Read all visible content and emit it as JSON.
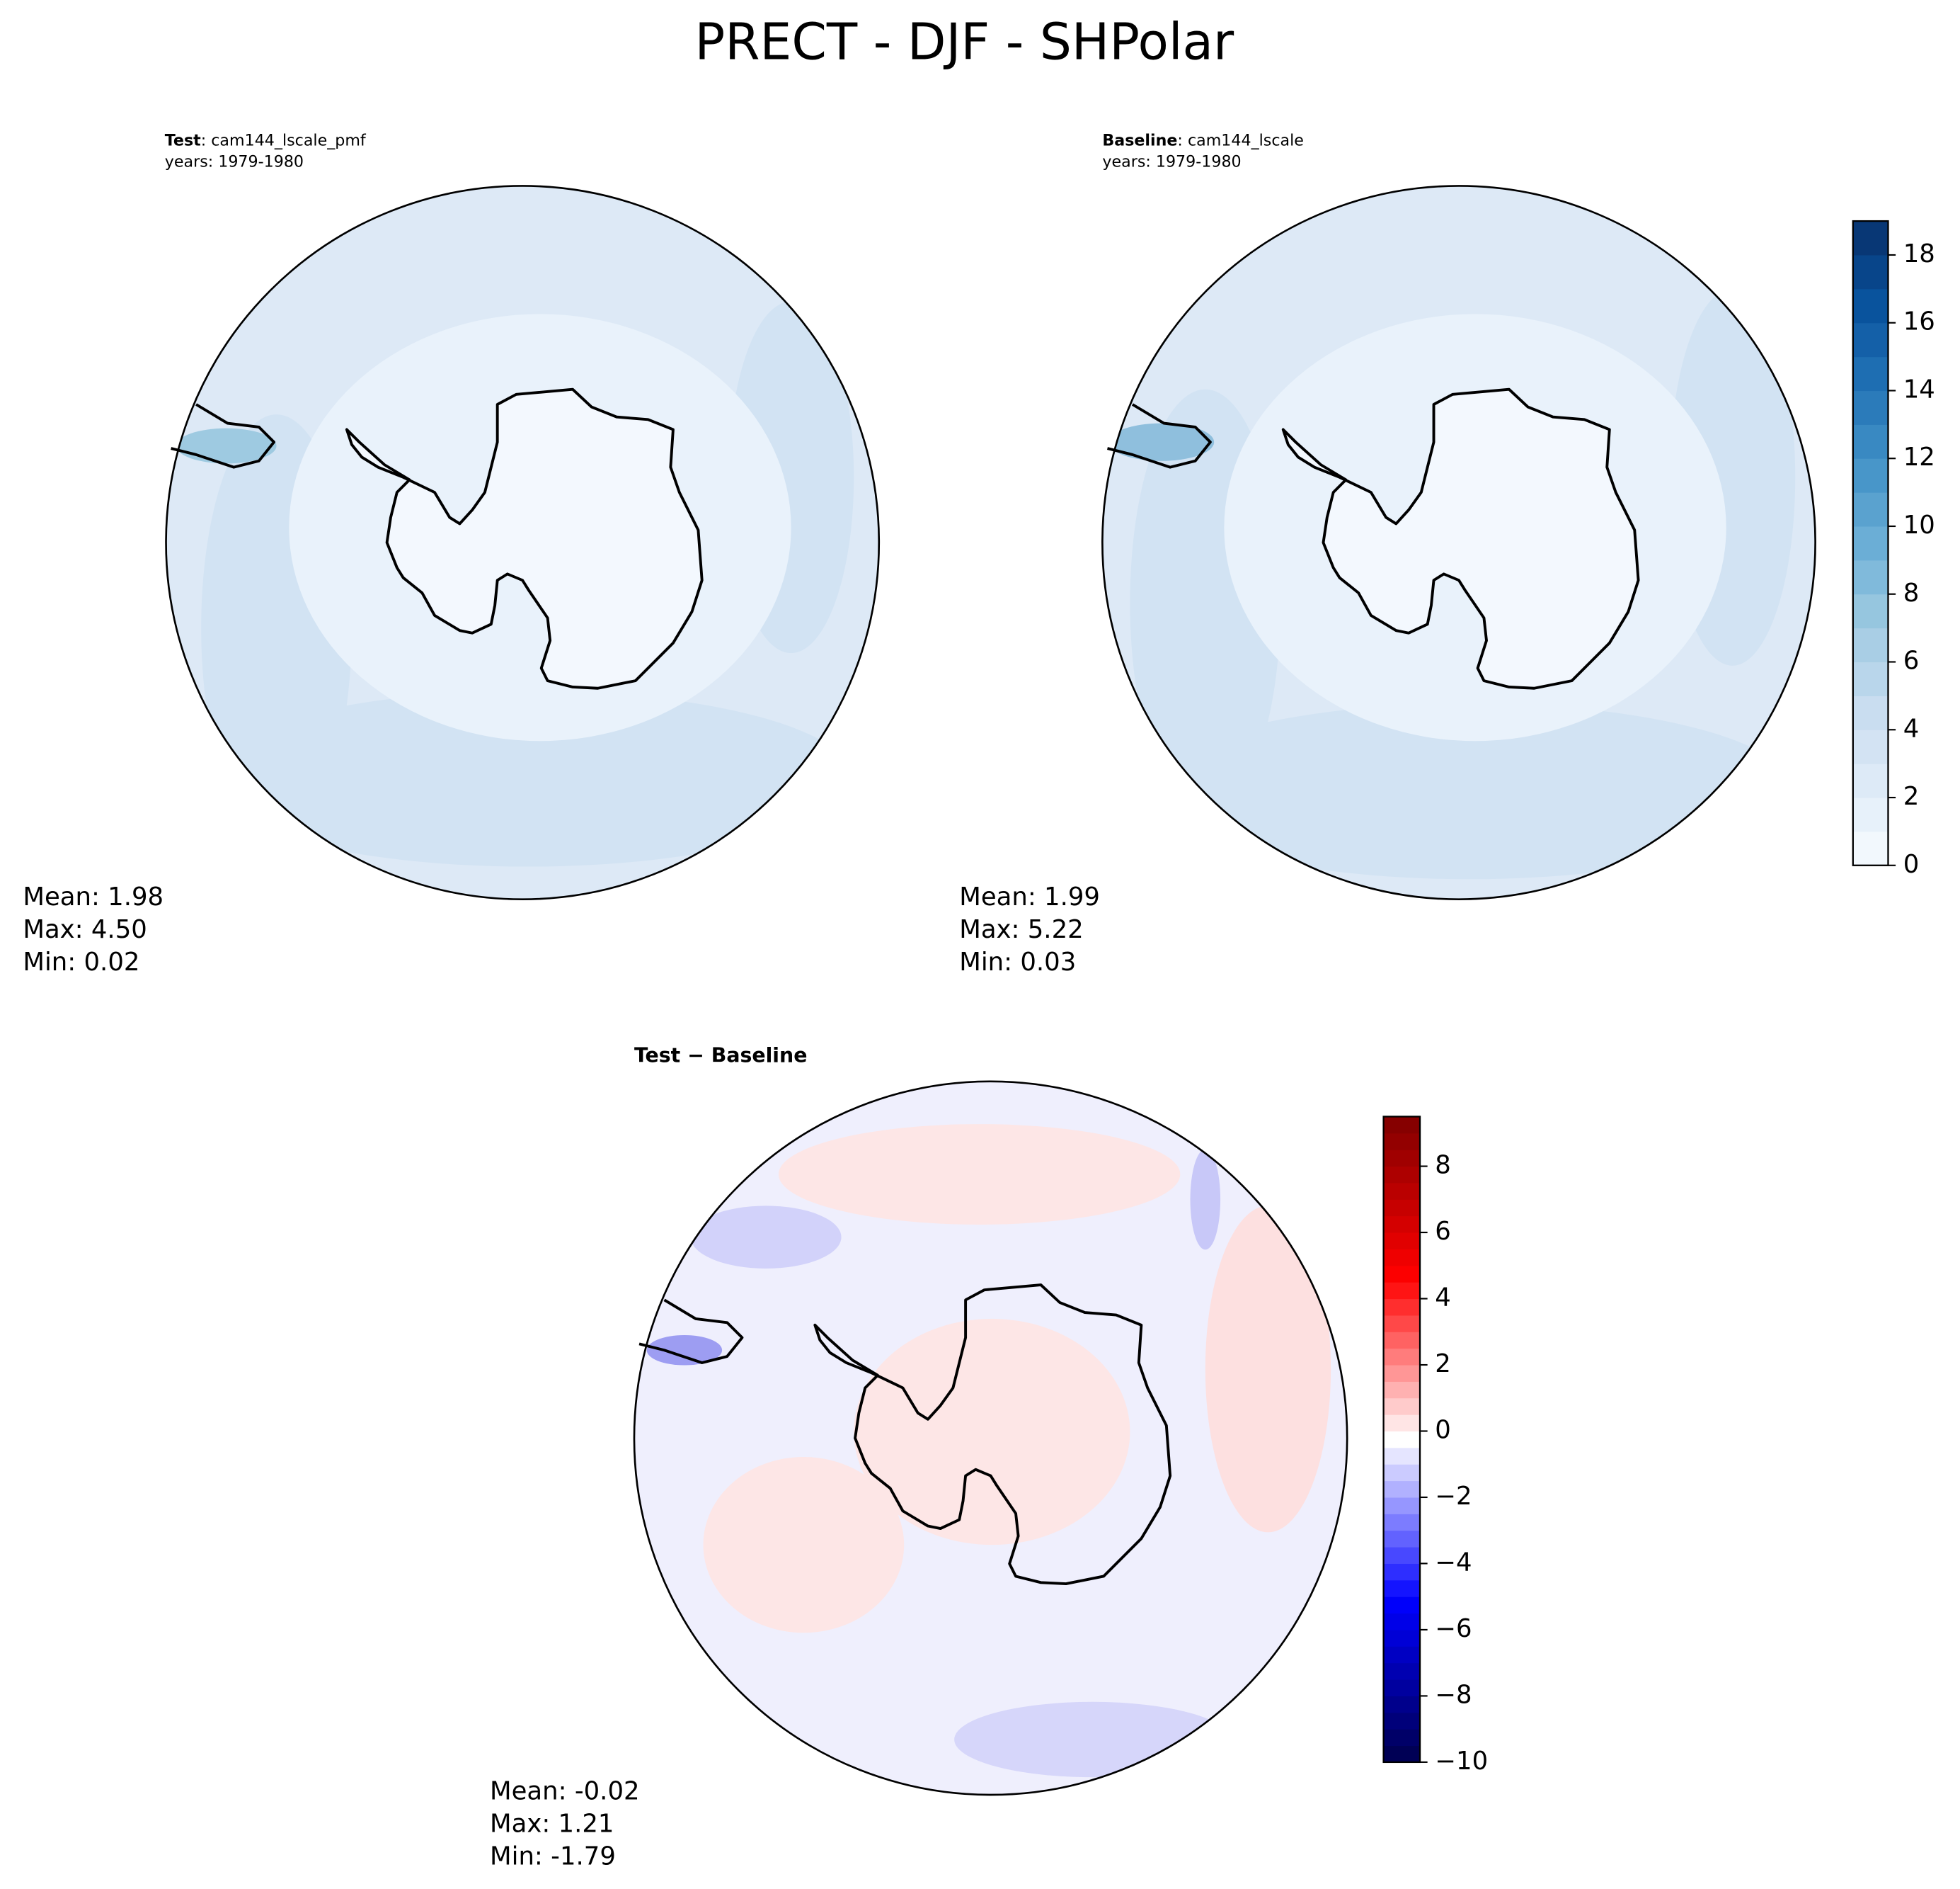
{
  "title": "PRECT - DJF - SHPolar",
  "panels": [
    {
      "label_bold": "Test",
      "label_rest": ": cam144_lscale_pmf",
      "years": "years: 1979-1980",
      "stats": [
        "Mean:  1.98",
        "Max:  4.50",
        "Min:  0.02"
      ]
    },
    {
      "label_bold": "Baseline",
      "label_rest": ": cam144_lscale",
      "years": "years: 1979-1980",
      "stats": [
        "Mean:  1.99",
        "Max:  5.22",
        "Min:  0.03"
      ]
    },
    {
      "label_bold": "Test − Baseline",
      "stats": [
        "Mean: -0.02",
        "Max:  1.21",
        "Min: -1.79"
      ]
    }
  ],
  "chart_data": [
    {
      "type": "colorbar",
      "ylim": [
        0,
        19
      ],
      "step": 1,
      "yticks": [
        0,
        2,
        4,
        6,
        8,
        10,
        12,
        14,
        16,
        18
      ],
      "colors": [
        "#f7fbff",
        "#deebf7",
        "#c6dbef",
        "#9ecae1",
        "#6baed6",
        "#4292c6",
        "#2171b5",
        "#08519c",
        "#08306b"
      ]
    },
    {
      "type": "colorbar",
      "ylim": [
        -10,
        9.5
      ],
      "step": 0.5,
      "yticks": [
        {
          "value": -10,
          "label": "−10"
        },
        {
          "value": -8,
          "label": "−8"
        },
        {
          "value": -6,
          "label": "−6"
        },
        {
          "value": -4,
          "label": "−4"
        },
        {
          "value": -2,
          "label": "−2"
        },
        0,
        2,
        4,
        6,
        8
      ],
      "colors": [
        "#00004c",
        "#0000ff",
        "#ffffff",
        "#ff0000",
        "#7f0000"
      ]
    }
  ]
}
